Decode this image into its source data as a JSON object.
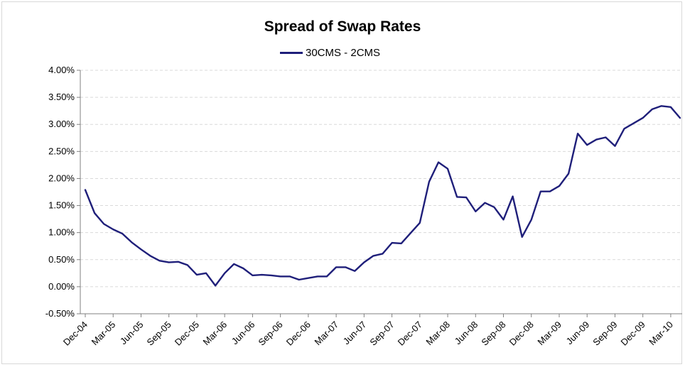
{
  "chart_data": {
    "type": "line",
    "title": "Spread of Swap Rates",
    "legend": {
      "position": "top-center"
    },
    "xlabel": "",
    "ylabel": "",
    "ylim": [
      -0.5,
      4.0
    ],
    "y_tick_labels": [
      "-0.50%",
      "0.00%",
      "0.50%",
      "1.00%",
      "1.50%",
      "2.00%",
      "2.50%",
      "3.00%",
      "3.50%",
      "4.00%"
    ],
    "x_tick_labels": [
      "Dec-04",
      "Mar-05",
      "Jun-05",
      "Sep-05",
      "Dec-05",
      "Mar-06",
      "Jun-06",
      "Sep-06",
      "Dec-06",
      "Mar-07",
      "Jun-07",
      "Sep-07",
      "Dec-07",
      "Mar-08",
      "Jun-08",
      "Sep-08",
      "Dec-08",
      "Mar-09",
      "Jun-09",
      "Sep-09",
      "Dec-09",
      "Mar-10"
    ],
    "grid": "horizontal dashed",
    "colors": {
      "line": "#1f1f7a",
      "grid": "#d9d9d9",
      "axis": "#808080"
    },
    "x": [
      "Dec-04",
      "Jan-05",
      "Feb-05",
      "Mar-05",
      "Apr-05",
      "May-05",
      "Jun-05",
      "Jul-05",
      "Aug-05",
      "Sep-05",
      "Oct-05",
      "Nov-05",
      "Dec-05",
      "Jan-06",
      "Feb-06",
      "Mar-06",
      "Apr-06",
      "May-06",
      "Jun-06",
      "Jul-06",
      "Aug-06",
      "Sep-06",
      "Oct-06",
      "Nov-06",
      "Dec-06",
      "Jan-07",
      "Feb-07",
      "Mar-07",
      "Apr-07",
      "May-07",
      "Jun-07",
      "Jul-07",
      "Aug-07",
      "Sep-07",
      "Oct-07",
      "Nov-07",
      "Dec-07",
      "Jan-08",
      "Feb-08",
      "Mar-08",
      "Apr-08",
      "May-08",
      "Jun-08",
      "Jul-08",
      "Aug-08",
      "Sep-08",
      "Oct-08",
      "Nov-08",
      "Dec-08",
      "Jan-09",
      "Feb-09",
      "Mar-09",
      "Apr-09",
      "May-09",
      "Jun-09",
      "Jul-09",
      "Aug-09",
      "Sep-09",
      "Oct-09",
      "Nov-09",
      "Dec-09",
      "Jan-10",
      "Feb-10",
      "Mar-10",
      "Apr-10"
    ],
    "series": [
      {
        "name": "30CMS - 2CMS",
        "values": [
          1.79,
          1.36,
          1.16,
          1.06,
          0.98,
          0.82,
          0.69,
          0.57,
          0.48,
          0.45,
          0.46,
          0.4,
          0.22,
          0.25,
          0.02,
          0.25,
          0.42,
          0.34,
          0.21,
          0.22,
          0.21,
          0.19,
          0.19,
          0.13,
          0.16,
          0.19,
          0.19,
          0.36,
          0.36,
          0.29,
          0.45,
          0.57,
          0.61,
          0.81,
          0.8,
          0.99,
          1.18,
          1.94,
          2.3,
          2.18,
          1.66,
          1.65,
          1.39,
          1.55,
          1.47,
          1.24,
          1.67,
          0.92,
          1.24,
          1.76,
          1.76,
          1.86,
          2.09,
          2.83,
          2.62,
          2.72,
          2.76,
          2.6,
          2.92,
          3.02,
          3.12,
          3.28,
          3.34,
          3.32,
          3.12
        ]
      }
    ]
  }
}
